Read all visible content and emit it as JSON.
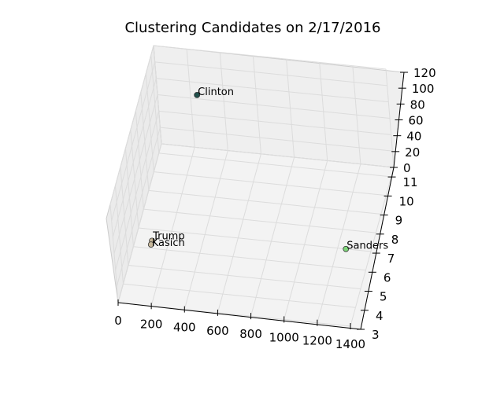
{
  "chart_data": {
    "type": "scatter3d",
    "title": "Clustering Candidates on 2/17/2016",
    "xlabel": "",
    "ylabel": "",
    "zlabel": "",
    "x_ticks": [
      "0",
      "200",
      "400",
      "600",
      "800",
      "1000",
      "1200",
      "1400"
    ],
    "y_ticks": [
      "3",
      "4",
      "5",
      "6",
      "7",
      "8",
      "9",
      "10",
      "11"
    ],
    "z_ticks": [
      "0",
      "20",
      "40",
      "60",
      "80",
      "100",
      "120"
    ],
    "xlim": [
      0,
      1400
    ],
    "ylim": [
      3,
      11.5
    ],
    "zlim": [
      0,
      120
    ],
    "grid": true,
    "points": [
      {
        "label": "Clinton",
        "x": 300,
        "y": 10,
        "z": 100,
        "color": "#1f4e4a"
      },
      {
        "label": "Sanders",
        "x": 1250,
        "y": 7,
        "z": 0,
        "color": "#7fd67a"
      },
      {
        "label": "Trump",
        "x": 100,
        "y": 6.4,
        "z": 0,
        "color": "#c8b89a"
      },
      {
        "label": "Kasich",
        "x": 100,
        "y": 6.2,
        "z": 0,
        "color": "#c8b89a"
      }
    ]
  }
}
